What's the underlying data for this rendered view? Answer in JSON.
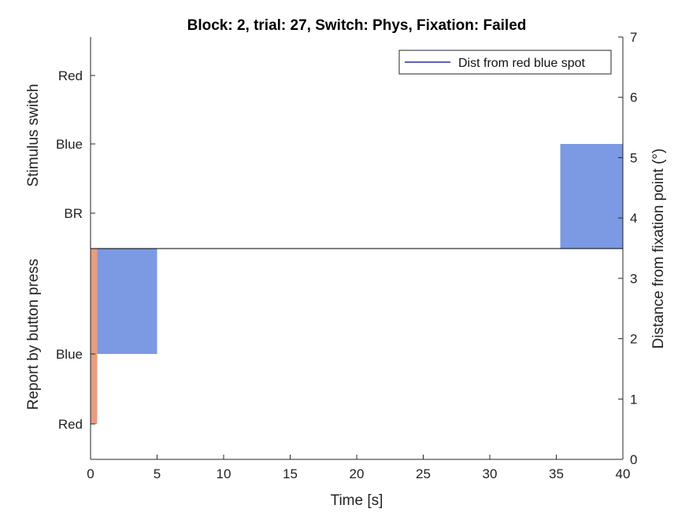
{
  "chart_data": {
    "type": "bar",
    "title": "Block: 2, trial: 27, Switch: Phys, Fixation: Failed",
    "xlabel": "Time [s]",
    "xlim": [
      0,
      40
    ],
    "xticks": [
      "0",
      "5",
      "10",
      "15",
      "20",
      "25",
      "30",
      "35",
      "40"
    ],
    "right_axis": {
      "label": "Distance from fixation point (°)",
      "ylim": [
        0,
        7
      ],
      "ticks": [
        "0",
        "1",
        "2",
        "3",
        "4",
        "5",
        "6",
        "7"
      ]
    },
    "left_axis_upper": {
      "label": "Stimulus switch",
      "ticks": [
        "Red",
        "Blue",
        "BR"
      ]
    },
    "left_axis_lower": {
      "label": "Report by button press",
      "ticks": [
        "Blue",
        "Red"
      ]
    },
    "legend": {
      "location": "top-right",
      "entries": [
        {
          "name": "Dist from red blue spot",
          "color": "#00008B"
        }
      ]
    },
    "series": [
      {
        "role": "stimulus_switch",
        "blocks": [
          {
            "x_start": 35.3,
            "x_end": 40,
            "level": "Blue",
            "color": "#7B9AE3"
          }
        ]
      },
      {
        "role": "button_report",
        "blocks": [
          {
            "x_start": 0,
            "x_end": 0.5,
            "level": "Red",
            "color": "#E99C7F"
          },
          {
            "x_start": 0.5,
            "x_end": 5,
            "level": "Blue",
            "color": "#7B9AE3"
          }
        ]
      }
    ],
    "colors": {
      "blue_block": "#7B9AE3",
      "red_block": "#E99C7F",
      "legend_line": "#00008B"
    }
  }
}
